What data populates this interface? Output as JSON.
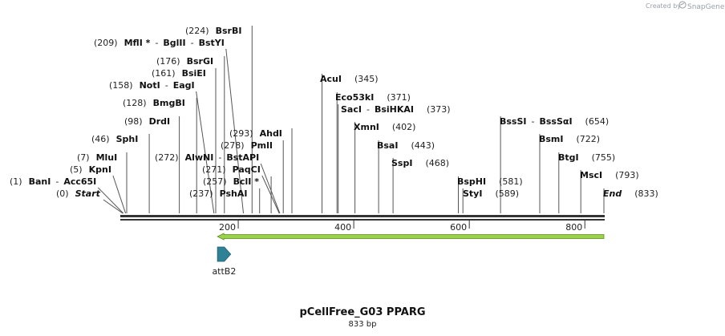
{
  "credit": {
    "prefix": "Created by",
    "brand": "SnapGene"
  },
  "title": "pCellFree_G03 PPARG",
  "subtitle": "833 bp",
  "sequence_length": 833,
  "axis_ticks": [
    {
      "pos": 200,
      "label": "200"
    },
    {
      "pos": 400,
      "label": "400"
    },
    {
      "pos": 600,
      "label": "600"
    },
    {
      "pos": 800,
      "label": "800"
    }
  ],
  "sites": [
    {
      "pos": 0,
      "pos_label": "(0)",
      "names": [
        "Start"
      ],
      "italic": true
    },
    {
      "pos": 1,
      "pos_label": "(1)",
      "names": [
        "BanI",
        "Acc65I"
      ],
      "sep": "-"
    },
    {
      "pos": 5,
      "pos_label": "(5)",
      "names": [
        "KpnI"
      ]
    },
    {
      "pos": 7,
      "pos_label": "(7)",
      "names": [
        "MluI"
      ]
    },
    {
      "pos": 46,
      "pos_label": "(46)",
      "names": [
        "SphI"
      ]
    },
    {
      "pos": 98,
      "pos_label": "(98)",
      "names": [
        "DrdI"
      ]
    },
    {
      "pos": 128,
      "pos_label": "(128)",
      "names": [
        "BmgBI"
      ]
    },
    {
      "pos": 158,
      "pos_label": "(158)",
      "names": [
        "NotI",
        "EagI"
      ],
      "sep": "-"
    },
    {
      "pos": 161,
      "pos_label": "(161)",
      "names": [
        "BsiEI"
      ]
    },
    {
      "pos": 176,
      "pos_label": "(176)",
      "names": [
        "BsrGI"
      ]
    },
    {
      "pos": 209,
      "pos_label": "(209)",
      "names": [
        "MflI *",
        "BglII",
        "BstYI"
      ],
      "sep": "-"
    },
    {
      "pos": 224,
      "pos_label": "(224)",
      "names": [
        "BsrBI"
      ]
    },
    {
      "pos": 237,
      "pos_label": "(237)",
      "names": [
        "PshAI"
      ]
    },
    {
      "pos": 257,
      "pos_label": "(257)",
      "names": [
        "BclI *"
      ]
    },
    {
      "pos": 271,
      "pos_label": "(271)",
      "names": [
        "PaqCI"
      ]
    },
    {
      "pos": 272,
      "pos_label": "(272)",
      "names": [
        "AlwNI",
        "BstAPI"
      ],
      "sep": "-"
    },
    {
      "pos": 278,
      "pos_label": "(278)",
      "names": [
        "PmlI"
      ]
    },
    {
      "pos": 293,
      "pos_label": "(293)",
      "names": [
        "AhdI"
      ]
    },
    {
      "pos": 345,
      "pos_label": "(345)",
      "names": [
        "AcuI"
      ]
    },
    {
      "pos": 371,
      "pos_label": "(371)",
      "names": [
        "Eco53kI"
      ]
    },
    {
      "pos": 373,
      "pos_label": "(373)",
      "names": [
        "SacI",
        "BsiHKAI"
      ],
      "sep": "-"
    },
    {
      "pos": 402,
      "pos_label": "(402)",
      "names": [
        "XmnI"
      ]
    },
    {
      "pos": 443,
      "pos_label": "(443)",
      "names": [
        "BsaI"
      ]
    },
    {
      "pos": 468,
      "pos_label": "(468)",
      "names": [
        "SspI"
      ]
    },
    {
      "pos": 581,
      "pos_label": "(581)",
      "names": [
        "BspHI"
      ]
    },
    {
      "pos": 589,
      "pos_label": "(589)",
      "names": [
        "StyI"
      ]
    },
    {
      "pos": 654,
      "pos_label": "(654)",
      "names": [
        "BssSI",
        "BssSαI"
      ],
      "sep": "-"
    },
    {
      "pos": 722,
      "pos_label": "(722)",
      "names": [
        "BsmI"
      ]
    },
    {
      "pos": 755,
      "pos_label": "(755)",
      "names": [
        "BtgI"
      ]
    },
    {
      "pos": 793,
      "pos_label": "(793)",
      "names": [
        "MscI"
      ]
    },
    {
      "pos": 833,
      "pos_label": "(833)",
      "names": [
        "End"
      ],
      "italic": true
    }
  ],
  "features": [
    {
      "name": "green-arrow",
      "label": "",
      "start": 164,
      "end": 833,
      "direction": "reverse",
      "color": "#9ad24a"
    },
    {
      "name": "attB2",
      "label": "attB2",
      "start": 164,
      "end": 187,
      "direction": "forward",
      "color": "#2f8196"
    }
  ],
  "colors": {
    "backbone": "#333333",
    "tick_line": "#555555",
    "credit": "#9aa0a6"
  }
}
